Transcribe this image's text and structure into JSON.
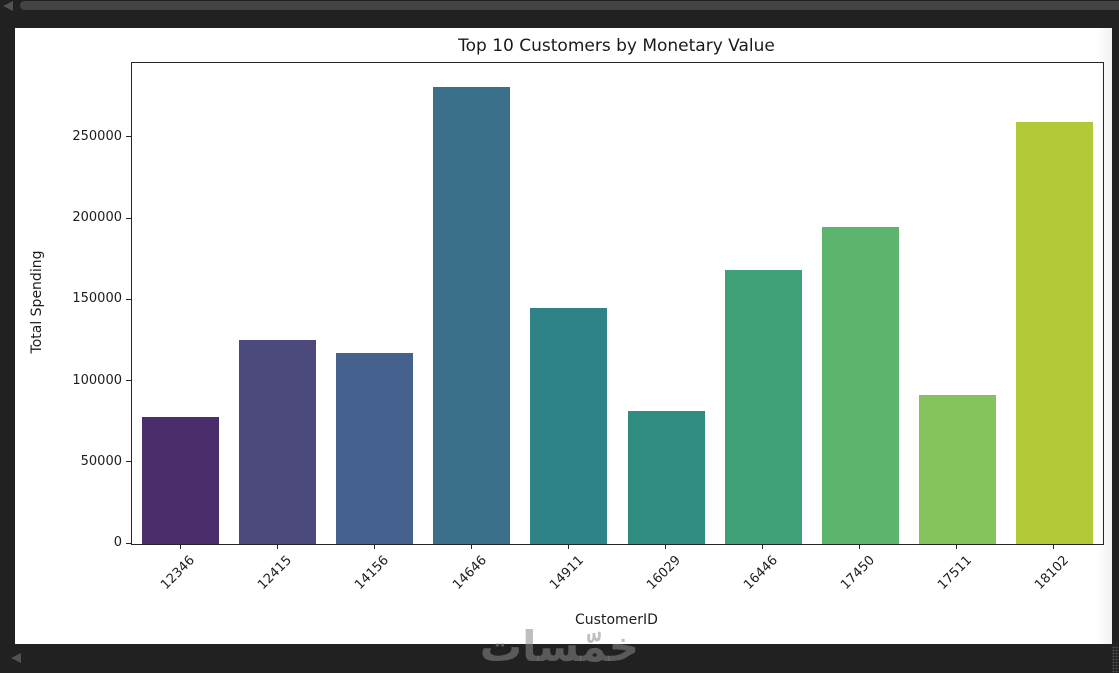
{
  "player": {
    "icons": {
      "top_left": "triangle-left",
      "bottom_left": "triangle-left"
    },
    "colors": {
      "background": "#212121",
      "progress_bar": "#444444",
      "icon": "#515151"
    }
  },
  "watermark": {
    "text": "خمّسات"
  },
  "chart_data": {
    "type": "bar",
    "title": "Top 10 Customers by Monetary Value",
    "xlabel": "CustomerID",
    "ylabel": "Total Spending",
    "categories": [
      "12346",
      "12415",
      "14156",
      "14646",
      "14911",
      "16029",
      "16446",
      "17450",
      "17511",
      "18102"
    ],
    "values": [
      78000,
      125500,
      117800,
      281000,
      145000,
      81800,
      168800,
      195300,
      91800,
      260000
    ],
    "bar_colors": [
      "#4a2d6b",
      "#4c4a7c",
      "#45618e",
      "#3a7089",
      "#2f8387",
      "#2f8c80",
      "#3fa077",
      "#5cb56c",
      "#85c45c",
      "#b3c938"
    ],
    "yticks": [
      0,
      50000,
      100000,
      150000,
      200000,
      250000
    ],
    "ylim": [
      0,
      296000
    ],
    "x_tick_rotation": 45,
    "grid": false,
    "legend": null,
    "figure_bg": "#ffffff",
    "text_color": "#1d1d1d"
  }
}
